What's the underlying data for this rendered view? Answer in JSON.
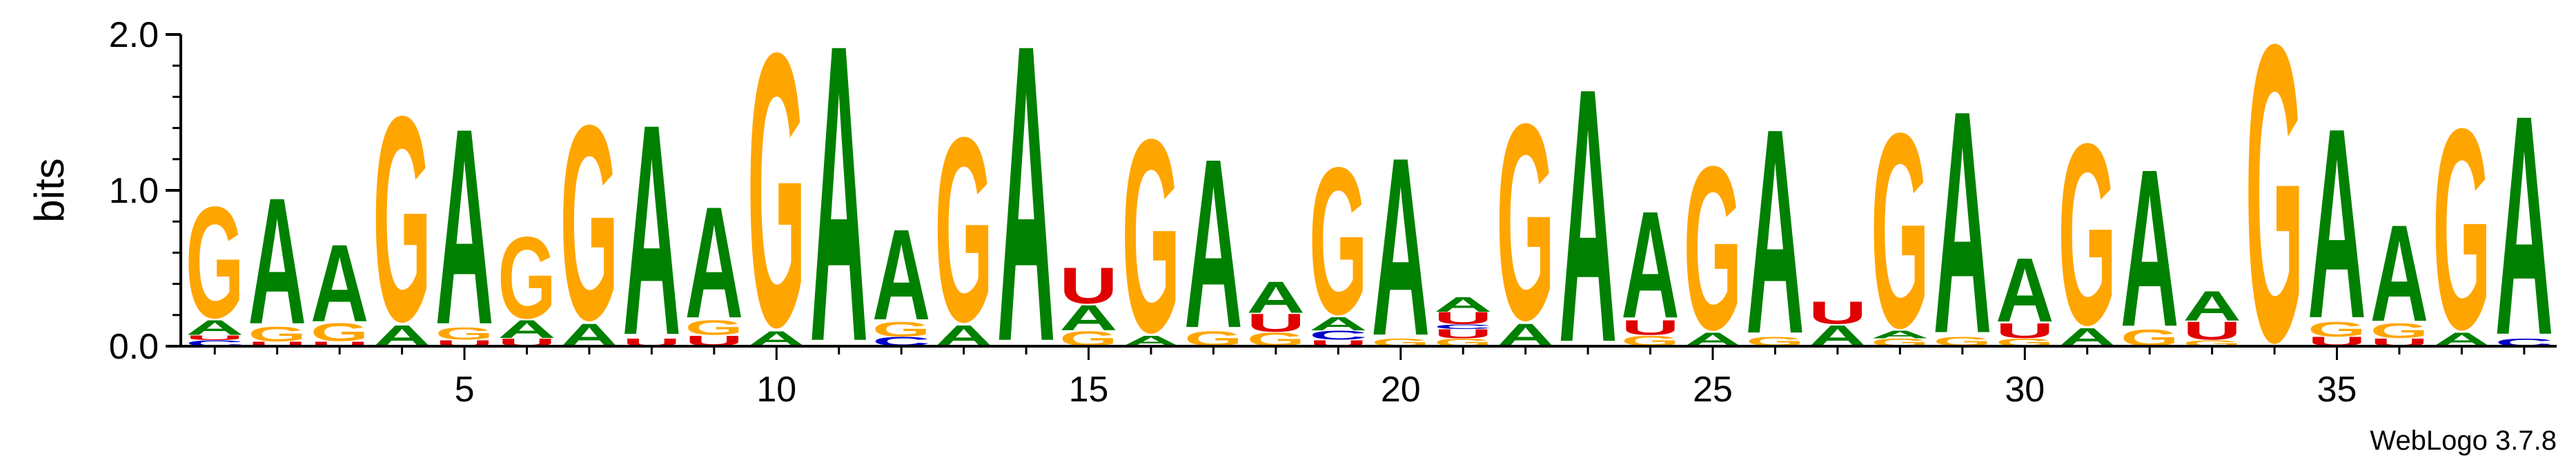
{
  "chart_data": {
    "type": "sequence-logo",
    "ylabel": "bits",
    "ylim": [
      0,
      2
    ],
    "yticks": [
      "0.0",
      "1.0",
      "2.0"
    ],
    "xticks": [
      "5",
      "10",
      "15",
      "20",
      "25",
      "30",
      "35"
    ],
    "x_tick_positions": [
      5,
      10,
      15,
      20,
      25,
      30,
      35
    ],
    "positions": 38,
    "credit": "WebLogo 3.7.8",
    "colors": {
      "G": "#FFA500",
      "A": "#008000",
      "U": "#E00000",
      "C": "#0000CC"
    },
    "columns": [
      {
        "pos": 1,
        "stack": [
          [
            "C",
            0.04
          ],
          [
            "U",
            0.03
          ],
          [
            "A",
            0.1
          ],
          [
            "G",
            0.75
          ]
        ]
      },
      {
        "pos": 2,
        "stack": [
          [
            "U",
            0.03
          ],
          [
            "G",
            0.1
          ],
          [
            "A",
            0.85
          ]
        ]
      },
      {
        "pos": 3,
        "stack": [
          [
            "U",
            0.03
          ],
          [
            "G",
            0.12
          ],
          [
            "A",
            0.52
          ]
        ]
      },
      {
        "pos": 4,
        "stack": [
          [
            "A",
            0.14
          ],
          [
            "G",
            1.38
          ]
        ]
      },
      {
        "pos": 5,
        "stack": [
          [
            "U",
            0.04
          ],
          [
            "G",
            0.08
          ],
          [
            "A",
            1.32
          ]
        ]
      },
      {
        "pos": 6,
        "stack": [
          [
            "U",
            0.05
          ],
          [
            "A",
            0.12
          ],
          [
            "G",
            0.55
          ]
        ]
      },
      {
        "pos": 7,
        "stack": [
          [
            "A",
            0.15
          ],
          [
            "G",
            1.31
          ]
        ]
      },
      {
        "pos": 8,
        "stack": [
          [
            "U",
            0.05
          ],
          [
            "A",
            1.42
          ]
        ]
      },
      {
        "pos": 9,
        "stack": [
          [
            "U",
            0.07
          ],
          [
            "G",
            0.1
          ],
          [
            "A",
            0.75
          ]
        ]
      },
      {
        "pos": 10,
        "stack": [
          [
            "A",
            0.1
          ],
          [
            "G",
            1.84
          ]
        ]
      },
      {
        "pos": 11,
        "stack": [
          [
            "A",
            2.0
          ]
        ]
      },
      {
        "pos": 12,
        "stack": [
          [
            "C",
            0.06
          ],
          [
            "G",
            0.1
          ],
          [
            "A",
            0.61
          ]
        ]
      },
      {
        "pos": 13,
        "stack": [
          [
            "A",
            0.14
          ],
          [
            "G",
            1.24
          ]
        ]
      },
      {
        "pos": 14,
        "stack": [
          [
            "A",
            2.0
          ]
        ]
      },
      {
        "pos": 15,
        "stack": [
          [
            "G",
            0.1
          ],
          [
            "A",
            0.17
          ],
          [
            "U",
            0.24
          ]
        ]
      },
      {
        "pos": 16,
        "stack": [
          [
            "A",
            0.07
          ],
          [
            "G",
            1.3
          ]
        ]
      },
      {
        "pos": 17,
        "stack": [
          [
            "G",
            0.1
          ],
          [
            "A",
            1.14
          ]
        ]
      },
      {
        "pos": 18,
        "stack": [
          [
            "G",
            0.09
          ],
          [
            "U",
            0.12
          ],
          [
            "A",
            0.21
          ]
        ]
      },
      {
        "pos": 19,
        "stack": [
          [
            "U",
            0.04
          ],
          [
            "C",
            0.06
          ],
          [
            "A",
            0.09
          ],
          [
            "G",
            0.99
          ]
        ]
      },
      {
        "pos": 20,
        "stack": [
          [
            "G",
            0.05
          ],
          [
            "A",
            1.2
          ]
        ]
      },
      {
        "pos": 21,
        "stack": [
          [
            "G",
            0.05
          ],
          [
            "U",
            0.06
          ],
          [
            "C",
            0.03
          ],
          [
            "U",
            0.08
          ],
          [
            "A",
            0.1
          ]
        ]
      },
      {
        "pos": 22,
        "stack": [
          [
            "A",
            0.15
          ],
          [
            "G",
            1.32
          ]
        ]
      },
      {
        "pos": 23,
        "stack": [
          [
            "A",
            1.71
          ]
        ]
      },
      {
        "pos": 24,
        "stack": [
          [
            "G",
            0.07
          ],
          [
            "U",
            0.1
          ],
          [
            "A",
            0.72
          ]
        ]
      },
      {
        "pos": 25,
        "stack": [
          [
            "A",
            0.09
          ],
          [
            "G",
            1.1
          ]
        ]
      },
      {
        "pos": 26,
        "stack": [
          [
            "G",
            0.06
          ],
          [
            "A",
            1.38
          ]
        ]
      },
      {
        "pos": 27,
        "stack": [
          [
            "A",
            0.14
          ],
          [
            "U",
            0.15
          ]
        ]
      },
      {
        "pos": 28,
        "stack": [
          [
            "G",
            0.05
          ],
          [
            "A",
            0.05
          ],
          [
            "G",
            1.31
          ]
        ]
      },
      {
        "pos": 29,
        "stack": [
          [
            "G",
            0.06
          ],
          [
            "A",
            1.5
          ]
        ]
      },
      {
        "pos": 30,
        "stack": [
          [
            "G",
            0.05
          ],
          [
            "U",
            0.1
          ],
          [
            "A",
            0.43
          ]
        ]
      },
      {
        "pos": 31,
        "stack": [
          [
            "A",
            0.12
          ],
          [
            "G",
            1.22
          ]
        ]
      },
      {
        "pos": 32,
        "stack": [
          [
            "G",
            0.11
          ],
          [
            "A",
            1.06
          ]
        ]
      },
      {
        "pos": 33,
        "stack": [
          [
            "G",
            0.04
          ],
          [
            "U",
            0.12
          ],
          [
            "A",
            0.2
          ]
        ]
      },
      {
        "pos": 34,
        "stack": [
          [
            "G",
            2.0
          ]
        ]
      },
      {
        "pos": 35,
        "stack": [
          [
            "U",
            0.06
          ],
          [
            "G",
            0.1
          ],
          [
            "A",
            1.28
          ]
        ]
      },
      {
        "pos": 36,
        "stack": [
          [
            "U",
            0.05
          ],
          [
            "G",
            0.1
          ],
          [
            "A",
            0.65
          ]
        ]
      },
      {
        "pos": 37,
        "stack": [
          [
            "A",
            0.09
          ],
          [
            "G",
            1.35
          ]
        ]
      },
      {
        "pos": 38,
        "stack": [
          [
            "C",
            0.05
          ],
          [
            "A",
            1.48
          ]
        ]
      }
    ]
  }
}
